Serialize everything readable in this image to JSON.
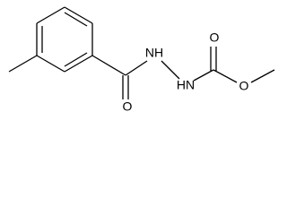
{
  "atoms": {
    "carbonyl_oxygen": "O",
    "amide_nitrogen": "NH",
    "carbamate_nitrogen": "HN",
    "carbamate_carbonyl_oxygen": "O",
    "ester_oxygen": "O"
  }
}
